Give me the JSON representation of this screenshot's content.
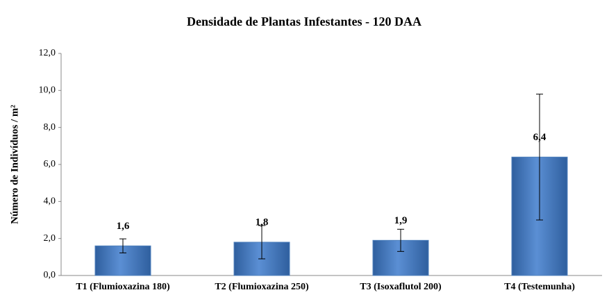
{
  "chart_data": {
    "type": "bar",
    "title": "Densidade de Plantas Infestantes - 120 DAA",
    "ylabel": "Número de Indivíduos  / m²",
    "categories": [
      "T1 (Flumioxazina 180)",
      "T2 (Flumioxazina 250)",
      "T3 (Isoxaflutol 200)",
      "T4 (Testemunha)"
    ],
    "values": [
      1.6,
      1.8,
      1.9,
      6.4
    ],
    "value_labels": [
      "1,6",
      "1,8",
      "1,9",
      "6,4"
    ],
    "errors": [
      0.38,
      0.9,
      0.6,
      3.4
    ],
    "color": "#4f81bd",
    "ylim": [
      0,
      12
    ],
    "yticks": [
      {
        "value": 0,
        "label": "0,0"
      },
      {
        "value": 2,
        "label": "2,0"
      },
      {
        "value": 4,
        "label": "4,0"
      },
      {
        "value": 6,
        "label": "6,0"
      },
      {
        "value": 8,
        "label": "8,0"
      },
      {
        "value": 10,
        "label": "10,0"
      },
      {
        "value": 12,
        "label": "12,0"
      }
    ],
    "grid": false
  }
}
